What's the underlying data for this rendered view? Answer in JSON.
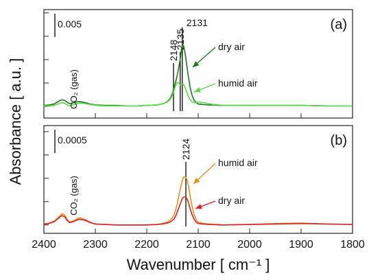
{
  "chart_data": [
    {
      "type": "line",
      "label": "(a)",
      "scale_bar": 0.005,
      "annotation": "CO₂ (gas)",
      "ylabel": "Absorbance [ a.u. ]",
      "peaks": [
        2148,
        2135,
        2131
      ],
      "xlim": [
        2400,
        1800
      ],
      "xticks": [
        2400,
        2300,
        2200,
        2100,
        2000,
        1900,
        1800
      ],
      "ylim": [
        -0.0025,
        0.0207
      ],
      "yticks": [
        0,
        0.005,
        0.01,
        0.015,
        0.02
      ],
      "x": [
        2400,
        2390,
        2380,
        2370,
        2365,
        2360,
        2355,
        2350,
        2340,
        2335,
        2330,
        2320,
        2310,
        2300,
        2280,
        2260,
        2240,
        2220,
        2200,
        2180,
        2170,
        2160,
        2155,
        2150,
        2147,
        2144,
        2141,
        2138,
        2135,
        2132,
        2130,
        2128,
        2125,
        2122,
        2119,
        2116,
        2112,
        2108,
        2104,
        2100,
        2090,
        2080,
        2070,
        2060,
        2050,
        2000,
        1950,
        1900,
        1850,
        1800
      ],
      "series": [
        {
          "name": "dry air",
          "color": "#1a7a1a",
          "values": [
            0.0002,
            0.0003,
            0.0005,
            0.0012,
            0.0014,
            0.0013,
            0.0009,
            0.0006,
            0.0008,
            0.001,
            0.001,
            0.0008,
            0.0005,
            0.0003,
            0.0002,
            0.0002,
            0.0001,
            0.0001,
            0.0002,
            0.0003,
            0.0005,
            0.001,
            0.0016,
            0.0028,
            0.004,
            0.0052,
            0.0066,
            0.0082,
            0.0102,
            0.0126,
            0.0132,
            0.0128,
            0.011,
            0.0086,
            0.0062,
            0.0042,
            0.0024,
            0.0013,
            0.0008,
            0.0005,
            0.0004,
            0.0003,
            0.0003,
            0.0002,
            0.0002,
            0.0002,
            0.0002,
            0.0002,
            0.0001,
            0.0001
          ]
        },
        {
          "name": "humid air",
          "color": "#55dd44",
          "values": [
            0.0001,
            0.0001,
            0.0002,
            0.0006,
            0.0008,
            0.0007,
            0.0003,
            0.0001,
            0.0004,
            0.0006,
            0.0007,
            0.0006,
            0.0004,
            0.0002,
            0.0001,
            0.0001,
            0.0001,
            0.0001,
            0.0002,
            0.0003,
            0.0005,
            0.0009,
            0.0014,
            0.0024,
            0.0034,
            0.0044,
            0.0051,
            0.005,
            0.0046,
            0.0048,
            0.0049,
            0.0046,
            0.0038,
            0.0029,
            0.0021,
            0.0015,
            0.001,
            0.0008,
            0.0008,
            0.0009,
            0.0008,
            0.0006,
            0.0004,
            0.0003,
            0.0002,
            0.0002,
            0.0002,
            0.0002,
            0.0001,
            0.0001
          ]
        }
      ]
    },
    {
      "type": "line",
      "label": "(b)",
      "scale_bar": 0.0005,
      "annotation": "CO₂ (gas)",
      "xlabel": "Wavenumber [ cm⁻¹ ]",
      "peaks": [
        2124
      ],
      "xlim": [
        2400,
        1800
      ],
      "xticks": [
        2400,
        2300,
        2200,
        2100,
        2000,
        1900,
        1800
      ],
      "ylim": [
        -0.00018,
        0.00213
      ],
      "yticks": [
        0,
        0.0005,
        0.001,
        0.0015,
        0.002
      ],
      "x": [
        2400,
        2390,
        2380,
        2370,
        2365,
        2360,
        2355,
        2350,
        2340,
        2335,
        2330,
        2320,
        2310,
        2300,
        2280,
        2260,
        2240,
        2220,
        2200,
        2180,
        2170,
        2160,
        2155,
        2150,
        2147,
        2144,
        2141,
        2138,
        2135,
        2132,
        2130,
        2128,
        2125,
        2122,
        2119,
        2116,
        2112,
        2108,
        2104,
        2100,
        2090,
        2080,
        2070,
        2060,
        2050,
        2000,
        1950,
        1900,
        1850,
        1800
      ],
      "series": [
        {
          "name": "humid air",
          "color": "#e8901c",
          "values": [
            2e-05,
            4e-05,
            8e-05,
            0.00018,
            0.00024,
            0.00022,
            0.00012,
            6e-05,
            0.0001,
            0.00014,
            0.00015,
            0.00012,
            6e-05,
            2e-05,
            1e-05,
            0,
            0,
            0,
            0,
            1e-05,
            3e-05,
            6e-05,
            0.0001,
            0.00016,
            0.00022,
            0.00032,
            0.00045,
            0.0006,
            0.00076,
            0.00091,
            0.00099,
            0.00103,
            0.00103,
            0.00098,
            0.00084,
            0.00064,
            0.0004,
            0.00022,
            0.00011,
            6e-05,
            3e-05,
            2e-05,
            1e-05,
            1e-05,
            0,
            1e-05,
            3e-05,
            4e-05,
            2e-05,
            1e-05
          ]
        },
        {
          "name": "dry air",
          "color": "#e02020",
          "values": [
            2e-05,
            3e-05,
            7e-05,
            0.00016,
            0.0002,
            0.00018,
            0.0001,
            5e-05,
            8e-05,
            0.00011,
            0.00012,
            0.0001,
            5e-05,
            2e-05,
            1e-05,
            0,
            0,
            0,
            0,
            1e-05,
            2e-05,
            4e-05,
            6e-05,
            0.0001,
            0.00013,
            0.00019,
            0.00027,
            0.00036,
            0.00045,
            0.00054,
            0.00058,
            0.0006,
            0.0006,
            0.00057,
            0.00048,
            0.00036,
            0.00022,
            0.00012,
            6e-05,
            3e-05,
            2e-05,
            1e-05,
            1e-05,
            0,
            0,
            1e-05,
            2e-05,
            3e-05,
            2e-05,
            1e-05
          ]
        }
      ]
    }
  ]
}
